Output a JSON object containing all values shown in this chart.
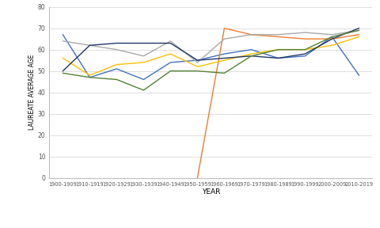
{
  "categories": [
    "1900-1909",
    "1910-1919",
    "1920-1929",
    "1930-1939",
    "1940-1949",
    "1950-1959",
    "1960-1969",
    "1970-1979",
    "1980-1989",
    "1990-1999",
    "2000-2009",
    "2010-2019"
  ],
  "series": {
    "chemistry": [
      67,
      47,
      51,
      46,
      54,
      55,
      58,
      60,
      56,
      57,
      66,
      48
    ],
    "economics": [
      null,
      null,
      null,
      null,
      null,
      0,
      70,
      67,
      66,
      65,
      65,
      67
    ],
    "literature": [
      64,
      62,
      60,
      57,
      64,
      54,
      65,
      67,
      67,
      68,
      67,
      69
    ],
    "medicine": [
      56,
      48,
      53,
      54,
      58,
      52,
      55,
      58,
      60,
      60,
      62,
      66
    ],
    "peace": [
      50,
      62,
      63,
      63,
      63,
      55,
      56,
      57,
      56,
      58,
      65,
      70
    ],
    "physics": [
      49,
      47,
      46,
      41,
      50,
      50,
      49,
      57,
      60,
      60,
      66,
      69
    ]
  },
  "colors": {
    "chemistry": "#4472C4",
    "economics": "#ED7D31",
    "literature": "#A9A9A9",
    "medicine": "#FFC000",
    "peace": "#203864",
    "physics": "#548235"
  },
  "xlabel": "YEAR",
  "ylabel": "LAUREATE AVERAGE AGE",
  "ylim": [
    0,
    80
  ],
  "yticks": [
    0,
    10,
    20,
    30,
    40,
    50,
    60,
    70,
    80
  ],
  "bg_color": "#FFFFFF",
  "grid_color": "#D9D9D9"
}
